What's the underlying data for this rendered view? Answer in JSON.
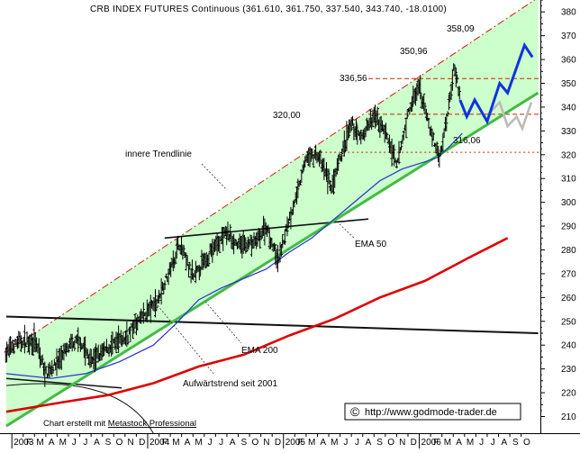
{
  "chart_data": {
    "type": "line",
    "title": "CRB INDEX FUTURES Continuous (361.610, 361.750, 337.540, 343.740, -18.0100)",
    "ylim": [
      203,
      385
    ],
    "y_ticks": [
      210,
      220,
      230,
      240,
      250,
      260,
      270,
      280,
      290,
      300,
      310,
      320,
      330,
      340,
      350,
      360,
      370,
      380
    ],
    "x_ticks": [
      {
        "label": "2003",
        "month": 0
      },
      {
        "label": "F",
        "month": 1
      },
      {
        "label": "M",
        "month": 2
      },
      {
        "label": "A",
        "month": 3
      },
      {
        "label": "M",
        "month": 4
      },
      {
        "label": "J",
        "month": 5
      },
      {
        "label": "J",
        "month": 6
      },
      {
        "label": "A",
        "month": 7
      },
      {
        "label": "S",
        "month": 8
      },
      {
        "label": "O",
        "month": 9
      },
      {
        "label": "N",
        "month": 10
      },
      {
        "label": "D",
        "month": 11
      },
      {
        "label": "2004",
        "month": 12
      },
      {
        "label": "F",
        "month": 13
      },
      {
        "label": "M",
        "month": 14
      },
      {
        "label": "A",
        "month": 15
      },
      {
        "label": "M",
        "month": 16
      },
      {
        "label": "J",
        "month": 17
      },
      {
        "label": "J",
        "month": 18
      },
      {
        "label": "A",
        "month": 19
      },
      {
        "label": "S",
        "month": 20
      },
      {
        "label": "O",
        "month": 21
      },
      {
        "label": "N",
        "month": 22
      },
      {
        "label": "D",
        "month": 23
      },
      {
        "label": "2005",
        "month": 24
      },
      {
        "label": "F",
        "month": 25
      },
      {
        "label": "M",
        "month": 26
      },
      {
        "label": "A",
        "month": 27
      },
      {
        "label": "M",
        "month": 28
      },
      {
        "label": "J",
        "month": 29
      },
      {
        "label": "J",
        "month": 30
      },
      {
        "label": "A",
        "month": 31
      },
      {
        "label": "S",
        "month": 32
      },
      {
        "label": "O",
        "month": 33
      },
      {
        "label": "N",
        "month": 34
      },
      {
        "label": "D",
        "month": 35
      },
      {
        "label": "2006",
        "month": 36
      },
      {
        "label": "F",
        "month": 37
      },
      {
        "label": "M",
        "month": 38
      },
      {
        "label": "A",
        "month": 39
      },
      {
        "label": "M",
        "month": 40
      },
      {
        "label": "J",
        "month": 41
      },
      {
        "label": "J",
        "month": 42
      },
      {
        "label": "A",
        "month": 43
      },
      {
        "label": "S",
        "month": 44
      },
      {
        "label": "O",
        "month": 45
      }
    ],
    "colors": {
      "price": "#000000",
      "channel_fill": "#ccffcc",
      "trend": "#44bb44",
      "ema50": "#2233cc",
      "ema200": "#dd0000",
      "projection_main": "#1133dd",
      "projection_alt": "#bbbbbb",
      "upper": "#cc2200"
    },
    "series": [
      {
        "name": "EMA 200",
        "points": [
          [
            -1,
            212
          ],
          [
            4,
            216
          ],
          [
            8,
            219
          ],
          [
            12,
            224
          ],
          [
            16,
            231
          ],
          [
            20,
            236
          ],
          [
            24,
            244
          ],
          [
            28,
            251
          ],
          [
            32,
            260
          ],
          [
            36,
            267
          ],
          [
            40,
            277
          ],
          [
            43.3,
            285
          ]
        ]
      },
      {
        "name": "EMA 50",
        "points": [
          [
            -1,
            228
          ],
          [
            3,
            226
          ],
          [
            6,
            228
          ],
          [
            9,
            233
          ],
          [
            12,
            240
          ],
          [
            14,
            249
          ],
          [
            16,
            259
          ],
          [
            18,
            264
          ],
          [
            20,
            268
          ],
          [
            22,
            272
          ],
          [
            24,
            279
          ],
          [
            26,
            285
          ],
          [
            28,
            293
          ],
          [
            30,
            301
          ],
          [
            32,
            309
          ],
          [
            34,
            314
          ],
          [
            36,
            317
          ],
          [
            37.2,
            319
          ],
          [
            38.5,
            325
          ],
          [
            39.3,
            329
          ]
        ]
      }
    ],
    "ohlc_anchors": [
      [
        -1,
        237
      ],
      [
        0,
        241
      ],
      [
        1.5,
        242
      ],
      [
        2.5,
        228
      ],
      [
        3.2,
        231
      ],
      [
        4.5,
        239
      ],
      [
        5.5,
        242
      ],
      [
        6.5,
        233
      ],
      [
        8,
        239
      ],
      [
        9.5,
        243
      ],
      [
        11,
        252
      ],
      [
        12.3,
        258
      ],
      [
        13.5,
        272
      ],
      [
        14.3,
        283
      ],
      [
        15.5,
        268
      ],
      [
        17,
        279
      ],
      [
        18.5,
        287
      ],
      [
        19.5,
        282
      ],
      [
        21,
        283
      ],
      [
        22,
        290
      ],
      [
        23,
        275
      ],
      [
        24,
        293
      ],
      [
        24.8,
        305
      ],
      [
        25.5,
        319
      ],
      [
        26.5,
        320
      ],
      [
        27.8,
        306
      ],
      [
        28.5,
        318
      ],
      [
        29.5,
        333
      ],
      [
        30.3,
        327
      ],
      [
        31.5,
        336
      ],
      [
        32.5,
        330
      ],
      [
        33.5,
        315
      ],
      [
        34.6,
        339
      ],
      [
        35.5,
        348
      ],
      [
        36.5,
        330
      ],
      [
        37.3,
        318
      ],
      [
        38,
        338
      ],
      [
        38.6,
        358
      ],
      [
        39.1,
        344
      ]
    ],
    "projection_main": [
      [
        39.1,
        343
      ],
      [
        39.7,
        336
      ],
      [
        40.4,
        343
      ],
      [
        41.5,
        334
      ],
      [
        42.6,
        350
      ],
      [
        43.3,
        346
      ],
      [
        44.8,
        366
      ],
      [
        45.5,
        361
      ]
    ],
    "projection_alt": [
      [
        41.6,
        337
      ],
      [
        42.6,
        342
      ],
      [
        43.3,
        332
      ],
      [
        44.1,
        336
      ],
      [
        44.6,
        331
      ],
      [
        45.4,
        342
      ]
    ],
    "lines": {
      "trendline": [
        [
          -1,
          206
        ],
        [
          46,
          346
        ]
      ],
      "channel_upper": [
        [
          -1,
          237
        ],
        [
          46,
          386
        ]
      ],
      "inner_trendline": [
        [
          13,
          285
        ],
        [
          31,
          293
        ]
      ],
      "old_resistance": [
        [
          -1,
          252
        ],
        [
          46,
          245
        ]
      ],
      "old_trend": [
        [
          -1,
          226
        ],
        [
          9.2,
          222
        ]
      ],
      "hline_358": 352,
      "hline_336": 337,
      "hline_320": 321
    },
    "price_labels": [
      "358,09",
      "350,96",
      "336,56",
      "320,00",
      "316,06"
    ],
    "annotations": {
      "inner_trend": "innere Trendlinie",
      "ema50": "EMA 50",
      "ema200": "EMA 200",
      "uptrend": "Aufwärtstrend seit 2001"
    },
    "credit_prefix": "Chart erstellt mit ",
    "credit_link": "Metastock Professional",
    "website": "http://www.godmode-trader.de",
    "copyright_symbol": "©"
  }
}
